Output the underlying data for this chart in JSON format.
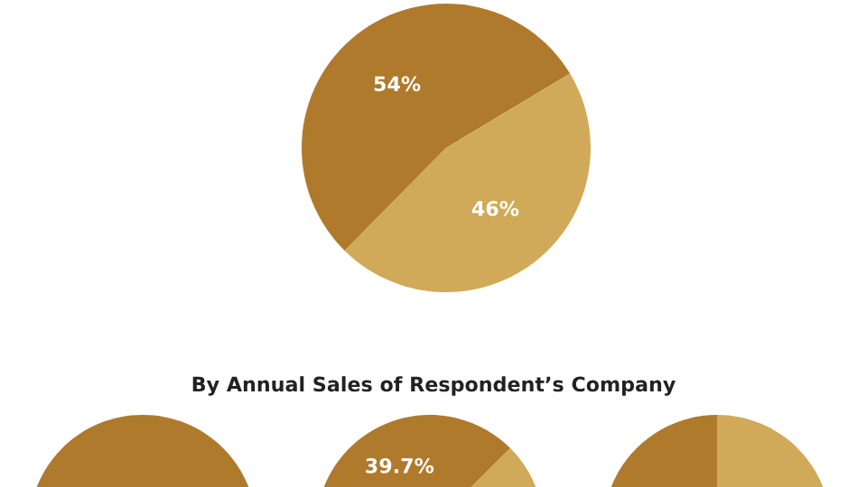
{
  "chart_data": [
    {
      "type": "pie",
      "categories": [
        null,
        null
      ],
      "values": [
        54,
        46
      ],
      "colors": [
        "#b07a2c",
        "#d0aa58"
      ],
      "value_labels": [
        "54%",
        "46%"
      ]
    },
    {
      "type": "pie",
      "title": "By Annual Sales of Respondent’s Company",
      "categories": [
        null
      ],
      "values": [
        100
      ],
      "colors": [
        "#b07a2c"
      ]
    },
    {
      "type": "pie",
      "categories": [
        null,
        null
      ],
      "values": [
        39.7,
        60.3
      ],
      "colors": [
        "#b07a2c",
        "#d0aa58"
      ],
      "value_labels": [
        "39.7%",
        null
      ]
    },
    {
      "type": "pie",
      "categories": [
        null,
        null
      ],
      "values": [
        50,
        50
      ],
      "colors": [
        "#b07a2c",
        "#d0aa58"
      ]
    }
  ]
}
